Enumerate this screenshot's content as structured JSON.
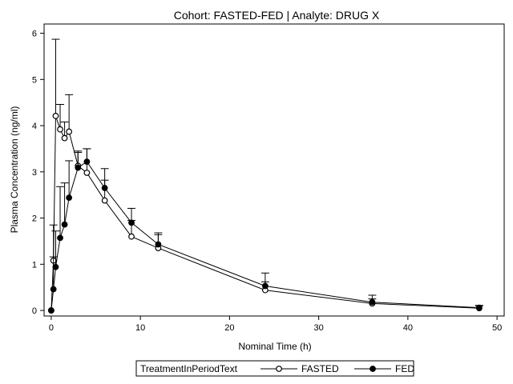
{
  "chart_data": {
    "type": "line",
    "title": "Cohort: FASTED-FED | Analyte: DRUG X",
    "xlabel": "Nominal Time (h)",
    "ylabel": "Plasma Concentration (ng/ml)",
    "xlim": [
      -0.8,
      50.8
    ],
    "ylim": [
      -0.12,
      6.2
    ],
    "xticks": [
      0,
      10,
      20,
      30,
      40,
      50
    ],
    "yticks": [
      0,
      1,
      2,
      3,
      4,
      5,
      6
    ],
    "legend": {
      "title": "TreatmentInPeriodText",
      "position": "bottom"
    },
    "x": [
      0,
      0.25,
      0.5,
      1,
      1.5,
      2,
      3,
      4,
      6,
      9,
      12,
      24,
      36,
      48
    ],
    "series": [
      {
        "name": "FASTED",
        "marker": "open-circle",
        "values": [
          0,
          1.08,
          4.21,
          3.92,
          3.73,
          3.87,
          3.13,
          2.98,
          2.38,
          1.6,
          1.35,
          0.44,
          0.15,
          0.05
        ],
        "error_upper": [
          0,
          1.85,
          5.87,
          4.46,
          4.08,
          4.67,
          3.45,
          3.5,
          2.82,
          1.95,
          1.64,
          0.62,
          0.25,
          0.1
        ]
      },
      {
        "name": "FED",
        "marker": "filled-circle",
        "values": [
          0,
          0.46,
          0.94,
          1.57,
          1.86,
          2.44,
          3.09,
          3.22,
          2.65,
          1.9,
          1.43,
          0.53,
          0.18,
          0.06
        ],
        "error_upper": [
          0,
          1.16,
          1.72,
          2.68,
          2.76,
          3.24,
          3.42,
          3.5,
          3.07,
          2.21,
          1.68,
          0.81,
          0.33,
          0.11
        ]
      }
    ],
    "grid": false,
    "colors": {
      "line": "#000000",
      "frame": "#000000",
      "background": "#ffffff"
    }
  }
}
